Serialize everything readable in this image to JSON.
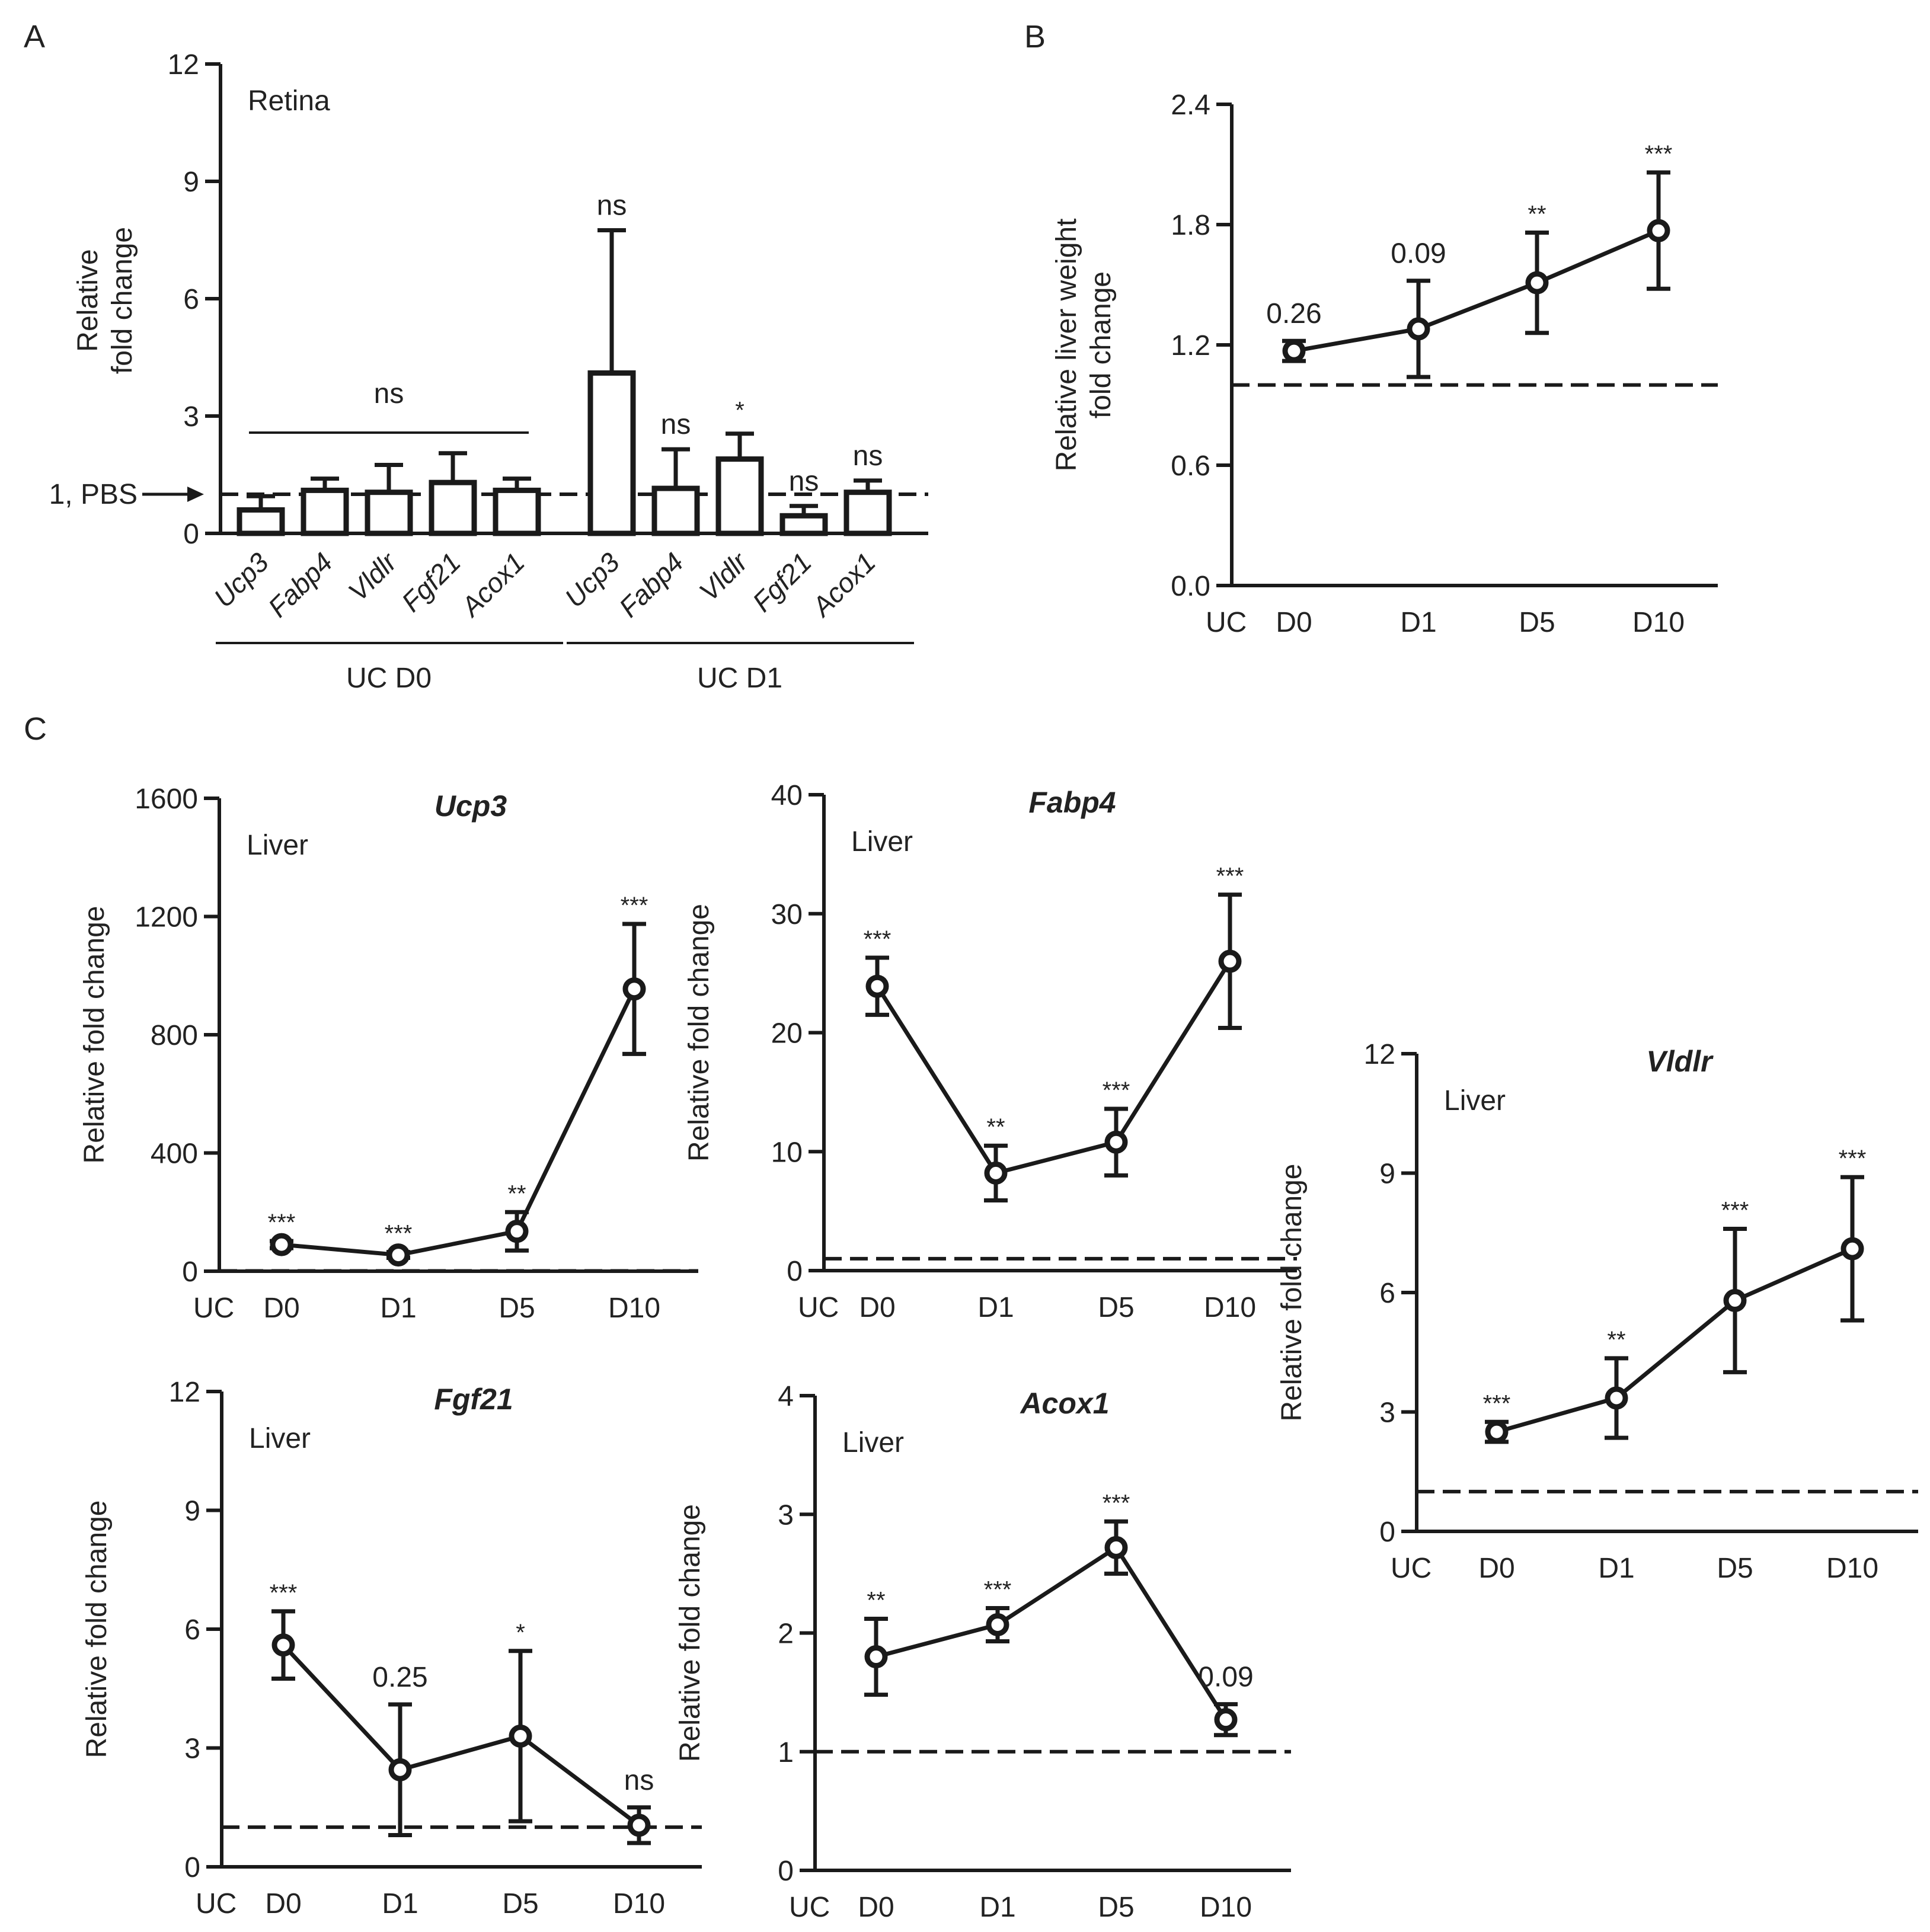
{
  "chart_data": [
    {
      "id": "A",
      "panel_label": "A",
      "type": "bar",
      "tissue": "Retina",
      "ylabel": [
        "Relative",
        "fold change"
      ],
      "ylim": [
        0,
        12
      ],
      "yticks": [
        "0",
        "3",
        "6",
        "9",
        "12"
      ],
      "reference": {
        "value": 1,
        "label": "1, PBS"
      },
      "groups": [
        {
          "label": "UC D0",
          "bracket_annotation": "ns",
          "bars": [
            {
              "gene": "Ucp3",
              "value": 0.6,
              "err": 0.35
            },
            {
              "gene": "Fabp4",
              "value": 1.1,
              "err": 0.3
            },
            {
              "gene": "Vldlr",
              "value": 1.05,
              "err": 0.7
            },
            {
              "gene": "Fgf21",
              "value": 1.3,
              "err": 0.75
            },
            {
              "gene": "Acox1",
              "value": 1.1,
              "err": 0.3
            }
          ]
        },
        {
          "label": "UC D1",
          "bracket_annotation": "",
          "bars": [
            {
              "gene": "Ucp3",
              "value": 4.1,
              "err": 3.65,
              "annotation": "ns"
            },
            {
              "gene": "Fabp4",
              "value": 1.15,
              "err": 1.0,
              "annotation": "ns"
            },
            {
              "gene": "Vldlr",
              "value": 1.9,
              "err": 0.65,
              "annotation": "*"
            },
            {
              "gene": "Fgf21",
              "value": 0.45,
              "err": 0.25,
              "annotation": "ns"
            },
            {
              "gene": "Acox1",
              "value": 1.05,
              "err": 0.3,
              "annotation": "ns"
            }
          ]
        }
      ]
    },
    {
      "id": "B",
      "panel_label": "B",
      "type": "line",
      "title": "",
      "tissue": "",
      "ylabel": [
        "Relative liver weight",
        "fold change"
      ],
      "ylim": [
        0,
        2.4
      ],
      "yticks": [
        "0.0",
        "0.6",
        "1.2",
        "1.8",
        "2.4"
      ],
      "x": [
        "D0",
        "D1",
        "D5",
        "D10"
      ],
      "x_axis_start_label": "UC",
      "reference": 1,
      "values": [
        1.17,
        1.28,
        1.51,
        1.77
      ],
      "errors": [
        0.05,
        0.24,
        0.25,
        0.29
      ],
      "annotations": [
        "0.26",
        "0.09",
        "**",
        "***"
      ]
    },
    {
      "id": "Ucp3",
      "panel_label": "C",
      "type": "line",
      "title": "Ucp3",
      "tissue": "Liver",
      "ylabel": [
        "Relative fold change"
      ],
      "ylim": [
        0,
        1600
      ],
      "yticks": [
        "0",
        "400",
        "800",
        "1200",
        "1600"
      ],
      "x": [
        "D0",
        "D1",
        "D5",
        "D10"
      ],
      "x_axis_start_label": "UC",
      "reference": 1,
      "values": [
        90,
        55,
        135,
        955
      ],
      "errors": [
        12,
        10,
        65,
        220
      ],
      "annotations": [
        "***",
        "***",
        "**",
        "***"
      ]
    },
    {
      "id": "Fabp4",
      "type": "line",
      "title": "Fabp4",
      "tissue": "Liver",
      "ylabel": [
        "Relative fold change"
      ],
      "ylim": [
        0,
        40
      ],
      "yticks": [
        "0",
        "10",
        "20",
        "30",
        "40"
      ],
      "x": [
        "D0",
        "D1",
        "D5",
        "D10"
      ],
      "x_axis_start_label": "UC",
      "reference": 1,
      "values": [
        23.9,
        8.2,
        10.8,
        26.0
      ],
      "errors": [
        2.4,
        2.3,
        2.8,
        5.6
      ],
      "annotations": [
        "***",
        "**",
        "***",
        "***"
      ]
    },
    {
      "id": "Vldlr",
      "type": "line",
      "title": "Vldlr",
      "tissue": "Liver",
      "ylabel": [
        "Relative fold change"
      ],
      "ylim": [
        0,
        12
      ],
      "yticks": [
        "0",
        "3",
        "6",
        "9",
        "12"
      ],
      "x": [
        "D0",
        "D1",
        "D5",
        "D10"
      ],
      "x_axis_start_label": "UC",
      "reference": 1,
      "values": [
        2.5,
        3.35,
        5.8,
        7.1
      ],
      "errors": [
        0.25,
        1.0,
        1.8,
        1.8
      ],
      "annotations": [
        "***",
        "**",
        "***",
        "***"
      ]
    },
    {
      "id": "Fgf21",
      "type": "line",
      "title": "Fgf21",
      "tissue": "Liver",
      "ylabel": [
        "Relative fold change"
      ],
      "ylim": [
        0,
        12
      ],
      "yticks": [
        "0",
        "3",
        "6",
        "9",
        "12"
      ],
      "x": [
        "D0",
        "D1",
        "D5",
        "D10"
      ],
      "x_axis_start_label": "UC",
      "reference": 1,
      "values": [
        5.6,
        2.45,
        3.3,
        1.05
      ],
      "errors": [
        0.85,
        1.65,
        2.15,
        0.45
      ],
      "annotations": [
        "***",
        "0.25",
        "*",
        "ns"
      ]
    },
    {
      "id": "Acox1",
      "type": "line",
      "title": "Acox1",
      "tissue": "Liver",
      "ylabel": [
        "Relative fold change"
      ],
      "ylim": [
        0,
        4
      ],
      "yticks": [
        "0",
        "1",
        "2",
        "3",
        "4"
      ],
      "x": [
        "D0",
        "D1",
        "D5",
        "D10"
      ],
      "x_axis_start_label": "UC",
      "reference": 1,
      "values": [
        1.8,
        2.07,
        2.72,
        1.27
      ],
      "errors": [
        0.32,
        0.14,
        0.22,
        0.13
      ],
      "annotations": [
        "**",
        "***",
        "***",
        "0.09"
      ]
    }
  ]
}
